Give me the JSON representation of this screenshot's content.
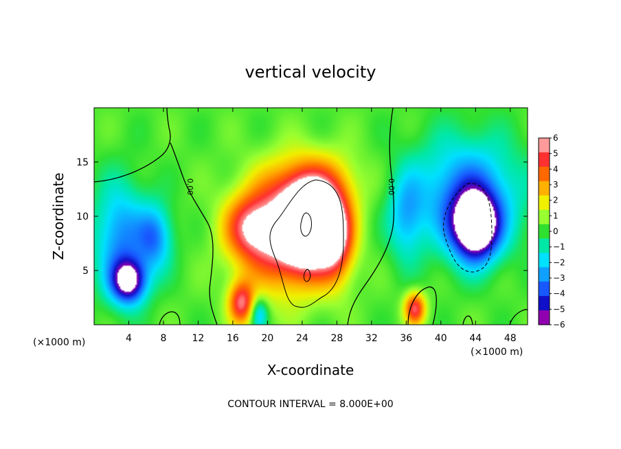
{
  "chart_data": {
    "type": "heatmap",
    "title": "vertical velocity",
    "xlabel": "X-coordinate",
    "ylabel": "Z-coordinate",
    "x_unit_label_left": "(×1000 m)",
    "x_unit_label_right": "(×1000 m)",
    "xlim": [
      0,
      50
    ],
    "ylim": [
      0,
      20
    ],
    "xticks": [
      4,
      8,
      12,
      16,
      20,
      24,
      28,
      32,
      36,
      40,
      44,
      48
    ],
    "yticks": [
      5,
      10,
      15
    ],
    "colorbar": {
      "ticks": [
        6,
        5,
        4,
        3,
        2,
        1,
        0,
        -1,
        -2,
        -3,
        -4,
        -5,
        -6
      ],
      "labels": [
        "6",
        "5",
        "4",
        "3",
        "2",
        "1",
        "0",
        "−1",
        "−2",
        "−3",
        "−4",
        "−5",
        "−6"
      ],
      "colors": [
        "#ff9a9a",
        "#ff3030",
        "#ff6800",
        "#ffb000",
        "#f0f000",
        "#98ff30",
        "#30e030",
        "#00e8a8",
        "#00e0ff",
        "#10a0ff",
        "#1858ff",
        "#1010c8",
        "#9000b0"
      ],
      "range": [
        -6,
        6
      ]
    },
    "contour_label": "0.00",
    "contour_label_2": "0.00",
    "contour_interval_text": "CONTOUR INTERVAL =  8.000E+00",
    "cells": [
      {
        "x": 25,
        "z": 9,
        "w": 9,
        "value": 9,
        "sx": 3.2,
        "sz": 3.6
      },
      {
        "x": 22,
        "z": 8,
        "w": 2,
        "value": 5,
        "sx": 5,
        "sz": 5
      },
      {
        "x": 18,
        "z": 9,
        "w": 1.5,
        "value": 4,
        "sx": 3,
        "sz": 3
      },
      {
        "x": 25,
        "z": 13,
        "w": 1.5,
        "value": 3,
        "sx": 5,
        "sz": 3
      },
      {
        "x": 28,
        "z": 8,
        "w": 1.5,
        "value": 4,
        "sx": 2,
        "sz": 4
      },
      {
        "x": 17,
        "z": 2,
        "w": 1,
        "value": 5,
        "sx": 1.5,
        "sz": 2
      },
      {
        "x": 44,
        "z": 9,
        "w": 9,
        "value": -8.5,
        "sx": 2.6,
        "sz": 3
      },
      {
        "x": 43,
        "z": 12,
        "w": 2,
        "value": -4,
        "sx": 6,
        "sz": 5
      },
      {
        "x": 4,
        "z": 4,
        "w": 5,
        "value": -6.5,
        "sx": 2,
        "sz": 2
      },
      {
        "x": 3,
        "z": 8,
        "w": 2,
        "value": -3.5,
        "sx": 3,
        "sz": 5
      },
      {
        "x": 7,
        "z": 8,
        "w": 1.5,
        "value": -3.5,
        "sx": 2,
        "sz": 3
      },
      {
        "x": 37,
        "z": 1.5,
        "w": 1.2,
        "value": 5,
        "sx": 1.2,
        "sz": 1.5
      },
      {
        "x": 36,
        "z": 10,
        "w": 1,
        "value": -2.5,
        "sx": 2,
        "sz": 4
      },
      {
        "x": 19,
        "z": 1,
        "w": 1,
        "value": -3,
        "sx": 1,
        "sz": 1.5
      }
    ]
  }
}
